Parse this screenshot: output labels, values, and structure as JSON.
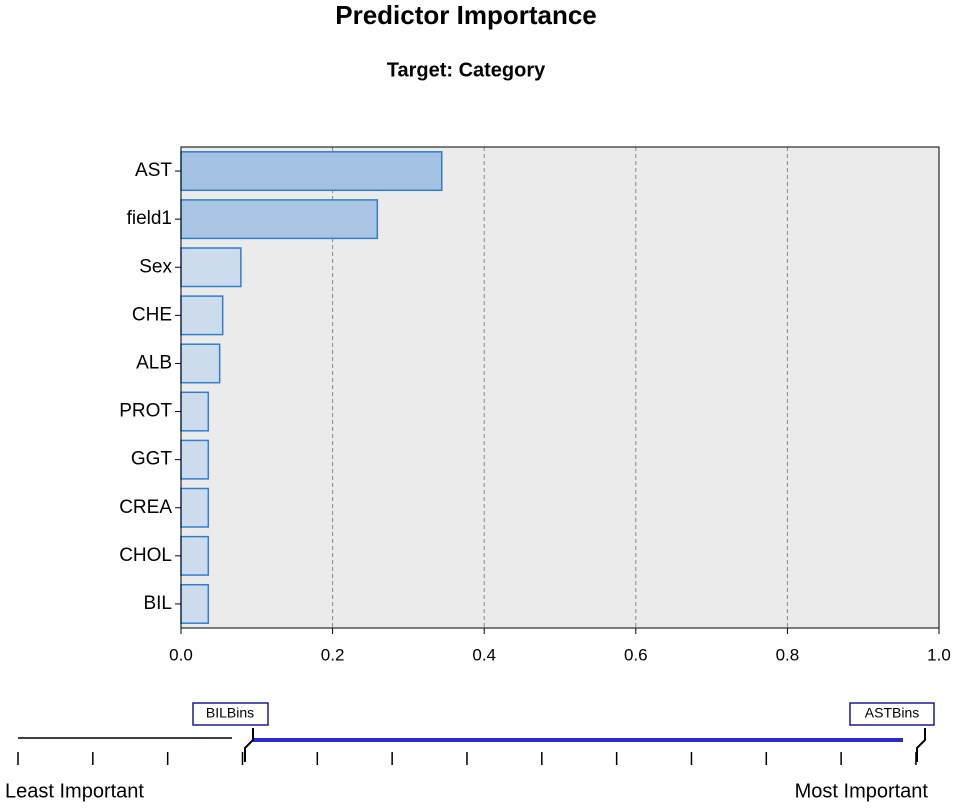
{
  "chart_data": {
    "type": "barh",
    "title": "Predictor Importance",
    "subtitle": "Target: Category",
    "categories": [
      "AST",
      "field1",
      "Sex",
      "CHE",
      "ALB",
      "PROT",
      "GGT",
      "CREA",
      "CHOL",
      "BIL"
    ],
    "values": [
      0.344,
      0.259,
      0.079,
      0.055,
      0.051,
      0.036,
      0.036,
      0.036,
      0.036,
      0.036
    ],
    "colors": [
      "#a3c2e3",
      "#a9c5e3",
      "#cddcec",
      "#cddcec",
      "#cddcec",
      "#cddcec",
      "#cddcec",
      "#cddcec",
      "#cddcec",
      "#cddcec"
    ],
    "edge_color": "#2f7fd0",
    "xlim": [
      0,
      1
    ],
    "xticks": [
      {
        "value": 0,
        "label": "0.0"
      },
      0.2,
      0.4,
      0.6,
      0.8,
      {
        "value": 1,
        "label": "1.0"
      }
    ],
    "grid": true
  },
  "slider": {
    "low_marker": "BILBins",
    "high_marker": "ASTBins",
    "left_text": "Least Important",
    "right_text": "Most Important"
  }
}
